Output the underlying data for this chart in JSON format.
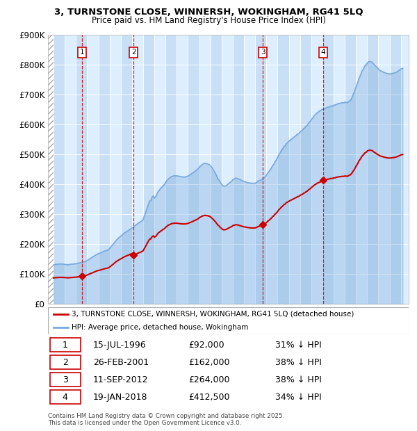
{
  "title": "3, TURNSTONE CLOSE, WINNERSH, WOKINGHAM, RG41 5LQ",
  "subtitle": "Price paid vs. HM Land Registry's House Price Index (HPI)",
  "ylim": [
    0,
    900000
  ],
  "yticks": [
    0,
    100000,
    200000,
    300000,
    400000,
    500000,
    600000,
    700000,
    800000,
    900000
  ],
  "ytick_labels": [
    "£0",
    "£100K",
    "£200K",
    "£300K",
    "£400K",
    "£500K",
    "£600K",
    "£700K",
    "£800K",
    "£900K"
  ],
  "xlim_start": 1993.5,
  "xlim_end": 2025.7,
  "hpi_color": "#7aaadd",
  "sale_color": "#cc0000",
  "transaction_line_color": "#cc0000",
  "background_color": "#ddeeff",
  "alt_band_color": "#c8dff5",
  "hatch_color": "#cccccc",
  "transactions": [
    {
      "num": 1,
      "date": "15-JUL-1996",
      "year": 1996.54,
      "price": 92000,
      "pct": "31%",
      "label": "1"
    },
    {
      "num": 2,
      "date": "26-FEB-2001",
      "year": 2001.15,
      "price": 162000,
      "pct": "38%",
      "label": "2"
    },
    {
      "num": 3,
      "date": "11-SEP-2012",
      "year": 2012.69,
      "price": 264000,
      "pct": "38%",
      "label": "3"
    },
    {
      "num": 4,
      "date": "19-JAN-2018",
      "year": 2018.05,
      "price": 412500,
      "pct": "34%",
      "label": "4"
    }
  ],
  "legend_entries": [
    "3, TURNSTONE CLOSE, WINNERSH, WOKINGHAM, RG41 5LQ (detached house)",
    "HPI: Average price, detached house, Wokingham"
  ],
  "footer": "Contains HM Land Registry data © Crown copyright and database right 2025.\nThis data is licensed under the Open Government Licence v3.0.",
  "hpi_data": {
    "years": [
      1994.0,
      1994.08,
      1994.17,
      1994.25,
      1994.33,
      1994.42,
      1994.5,
      1994.58,
      1994.67,
      1994.75,
      1994.83,
      1994.92,
      1995.0,
      1995.08,
      1995.17,
      1995.25,
      1995.33,
      1995.42,
      1995.5,
      1995.58,
      1995.67,
      1995.75,
      1995.83,
      1995.92,
      1996.0,
      1996.08,
      1996.17,
      1996.25,
      1996.33,
      1996.42,
      1996.5,
      1996.58,
      1996.67,
      1996.75,
      1996.83,
      1996.92,
      1997.0,
      1997.08,
      1997.17,
      1997.25,
      1997.33,
      1997.42,
      1997.5,
      1997.58,
      1997.67,
      1997.75,
      1997.83,
      1997.92,
      1998.0,
      1998.08,
      1998.17,
      1998.25,
      1998.33,
      1998.42,
      1998.5,
      1998.58,
      1998.67,
      1998.75,
      1998.83,
      1998.92,
      1999.0,
      1999.08,
      1999.17,
      1999.25,
      1999.33,
      1999.42,
      1999.5,
      1999.58,
      1999.67,
      1999.75,
      1999.83,
      1999.92,
      2000.0,
      2000.08,
      2000.17,
      2000.25,
      2000.33,
      2000.42,
      2000.5,
      2000.58,
      2000.67,
      2000.75,
      2000.83,
      2000.92,
      2001.0,
      2001.08,
      2001.17,
      2001.25,
      2001.33,
      2001.42,
      2001.5,
      2001.58,
      2001.67,
      2001.75,
      2001.83,
      2001.92,
      2002.0,
      2002.08,
      2002.17,
      2002.25,
      2002.33,
      2002.42,
      2002.5,
      2002.58,
      2002.67,
      2002.75,
      2002.83,
      2002.92,
      2003.0,
      2003.08,
      2003.17,
      2003.25,
      2003.33,
      2003.42,
      2003.5,
      2003.58,
      2003.67,
      2003.75,
      2003.83,
      2003.92,
      2004.0,
      2004.08,
      2004.17,
      2004.25,
      2004.33,
      2004.42,
      2004.5,
      2004.58,
      2004.67,
      2004.75,
      2004.83,
      2004.92,
      2005.0,
      2005.08,
      2005.17,
      2005.25,
      2005.33,
      2005.42,
      2005.5,
      2005.58,
      2005.67,
      2005.75,
      2005.83,
      2005.92,
      2006.0,
      2006.08,
      2006.17,
      2006.25,
      2006.33,
      2006.42,
      2006.5,
      2006.58,
      2006.67,
      2006.75,
      2006.83,
      2006.92,
      2007.0,
      2007.08,
      2007.17,
      2007.25,
      2007.33,
      2007.42,
      2007.5,
      2007.58,
      2007.67,
      2007.75,
      2007.83,
      2007.92,
      2008.0,
      2008.08,
      2008.17,
      2008.25,
      2008.33,
      2008.42,
      2008.5,
      2008.58,
      2008.67,
      2008.75,
      2008.83,
      2008.92,
      2009.0,
      2009.08,
      2009.17,
      2009.25,
      2009.33,
      2009.42,
      2009.5,
      2009.58,
      2009.67,
      2009.75,
      2009.83,
      2009.92,
      2010.0,
      2010.08,
      2010.17,
      2010.25,
      2010.33,
      2010.42,
      2010.5,
      2010.58,
      2010.67,
      2010.75,
      2010.83,
      2010.92,
      2011.0,
      2011.08,
      2011.17,
      2011.25,
      2011.33,
      2011.42,
      2011.5,
      2011.58,
      2011.67,
      2011.75,
      2011.83,
      2011.92,
      2012.0,
      2012.08,
      2012.17,
      2012.25,
      2012.33,
      2012.42,
      2012.5,
      2012.58,
      2012.67,
      2012.75,
      2012.83,
      2012.92,
      2013.0,
      2013.08,
      2013.17,
      2013.25,
      2013.33,
      2013.42,
      2013.5,
      2013.58,
      2013.67,
      2013.75,
      2013.83,
      2013.92,
      2014.0,
      2014.08,
      2014.17,
      2014.25,
      2014.33,
      2014.42,
      2014.5,
      2014.58,
      2014.67,
      2014.75,
      2014.83,
      2014.92,
      2015.0,
      2015.08,
      2015.17,
      2015.25,
      2015.33,
      2015.42,
      2015.5,
      2015.58,
      2015.67,
      2015.75,
      2015.83,
      2015.92,
      2016.0,
      2016.08,
      2016.17,
      2016.25,
      2016.33,
      2016.42,
      2016.5,
      2016.58,
      2016.67,
      2016.75,
      2016.83,
      2016.92,
      2017.0,
      2017.08,
      2017.17,
      2017.25,
      2017.33,
      2017.42,
      2017.5,
      2017.58,
      2017.67,
      2017.75,
      2017.83,
      2017.92,
      2018.0,
      2018.08,
      2018.17,
      2018.25,
      2018.33,
      2018.42,
      2018.5,
      2018.58,
      2018.67,
      2018.75,
      2018.83,
      2018.92,
      2019.0,
      2019.08,
      2019.17,
      2019.25,
      2019.33,
      2019.42,
      2019.5,
      2019.58,
      2019.67,
      2019.75,
      2019.83,
      2019.92,
      2020.0,
      2020.08,
      2020.17,
      2020.25,
      2020.33,
      2020.42,
      2020.5,
      2020.58,
      2020.67,
      2020.75,
      2020.83,
      2020.92,
      2021.0,
      2021.08,
      2021.17,
      2021.25,
      2021.33,
      2021.42,
      2021.5,
      2021.58,
      2021.67,
      2021.75,
      2021.83,
      2021.92,
      2022.0,
      2022.08,
      2022.17,
      2022.25,
      2022.33,
      2022.42,
      2022.5,
      2022.58,
      2022.67,
      2022.75,
      2022.83,
      2022.92,
      2023.0,
      2023.08,
      2023.17,
      2023.25,
      2023.33,
      2023.42,
      2023.5,
      2023.58,
      2023.67,
      2023.75,
      2023.83,
      2023.92,
      2024.0,
      2024.08,
      2024.17,
      2024.25,
      2024.33,
      2024.42,
      2024.5,
      2024.58,
      2024.67,
      2024.75,
      2024.83,
      2024.92,
      2025.0,
      2025.08,
      2025.17
    ],
    "values": [
      130000,
      131000,
      131500,
      132000,
      132500,
      133000,
      133000,
      133000,
      133000,
      133000,
      133000,
      132500,
      132000,
      131500,
      131000,
      131000,
      131000,
      131500,
      132000,
      132500,
      133000,
      133000,
      133500,
      134000,
      134000,
      135000,
      136000,
      136000,
      137000,
      138000,
      138000,
      139000,
      140000,
      141000,
      142000,
      143000,
      145000,
      147000,
      149000,
      151000,
      153000,
      155000,
      157000,
      159000,
      161000,
      163000,
      165000,
      166500,
      168000,
      169000,
      170000,
      172000,
      173000,
      174000,
      176000,
      177000,
      178000,
      179000,
      180000,
      182000,
      185000,
      189000,
      193000,
      196000,
      200000,
      204000,
      208000,
      212000,
      215000,
      218000,
      221000,
      224000,
      226000,
      229000,
      232000,
      234000,
      237000,
      239000,
      241000,
      243000,
      245000,
      247000,
      249000,
      251000,
      253000,
      255000,
      258000,
      261000,
      263000,
      265000,
      268000,
      270000,
      272000,
      274000,
      276000,
      279000,
      282000,
      291000,
      300000,
      309000,
      318000,
      327000,
      336000,
      344000,
      344000,
      353000,
      358000,
      361000,
      353000,
      357000,
      361000,
      369000,
      375000,
      379000,
      383000,
      387000,
      390000,
      394000,
      397000,
      400000,
      406000,
      410000,
      414000,
      418000,
      420000,
      422000,
      425000,
      426000,
      427000,
      428000,
      428000,
      428000,
      428000,
      427000,
      427000,
      426000,
      425000,
      425000,
      424000,
      424000,
      424000,
      424000,
      425000,
      426000,
      427000,
      429000,
      431000,
      433000,
      435000,
      437000,
      440000,
      442000,
      444000,
      447000,
      449000,
      452000,
      456000,
      460000,
      462000,
      465000,
      467000,
      468000,
      470000,
      469000,
      468000,
      468000,
      466000,
      465000,
      462000,
      458000,
      454000,
      449000,
      443000,
      438000,
      432000,
      425000,
      418000,
      415000,
      409000,
      404000,
      400000,
      396000,
      393000,
      393000,
      394000,
      395000,
      398000,
      401000,
      403000,
      406000,
      408000,
      411000,
      415000,
      417000,
      418000,
      420000,
      420000,
      419000,
      418000,
      416000,
      415000,
      413000,
      412000,
      410000,
      409000,
      408000,
      407000,
      406000,
      405000,
      404000,
      404000,
      403000,
      403000,
      403000,
      403000,
      403000,
      403000,
      405000,
      407000,
      410000,
      412000,
      413000,
      413000,
      415000,
      418000,
      420000,
      423000,
      426000,
      430000,
      435000,
      440000,
      443000,
      448000,
      452000,
      458000,
      463000,
      467000,
      474000,
      478000,
      483000,
      489000,
      496000,
      502000,
      506000,
      512000,
      516000,
      521000,
      526000,
      528000,
      534000,
      537000,
      540000,
      543000,
      546000,
      548000,
      551000,
      553000,
      556000,
      559000,
      561000,
      563000,
      567000,
      568000,
      570000,
      574000,
      577000,
      579000,
      582000,
      586000,
      588000,
      592000,
      595000,
      598000,
      603000,
      607000,
      610000,
      615000,
      619000,
      623000,
      628000,
      631000,
      634000,
      638000,
      640000,
      642000,
      645000,
      646000,
      648000,
      650000,
      651000,
      652000,
      653000,
      655000,
      656000,
      657000,
      658000,
      659000,
      661000,
      661000,
      661000,
      664000,
      664000,
      665000,
      667000,
      668000,
      669000,
      670000,
      670000,
      671000,
      672000,
      672000,
      672000,
      674000,
      673000,
      673000,
      672000,
      676000,
      678000,
      680000,
      685000,
      692000,
      700000,
      706000,
      716000,
      725000,
      733000,
      741000,
      752000,
      759000,
      766000,
      775000,
      781000,
      785000,
      793000,
      797000,
      799000,
      805000,
      808000,
      809000,
      810000,
      809000,
      808000,
      805000,
      801000,
      797000,
      795000,
      791000,
      788000,
      785000,
      782000,
      779000,
      778000,
      776000,
      775000,
      773000,
      772000,
      771000,
      770000,
      769000,
      769000,
      768000,
      769000,
      769000,
      770000,
      771000,
      771000,
      773000,
      774000,
      775000,
      778000,
      780000,
      782000,
      785000,
      786000,
      787000
    ]
  }
}
